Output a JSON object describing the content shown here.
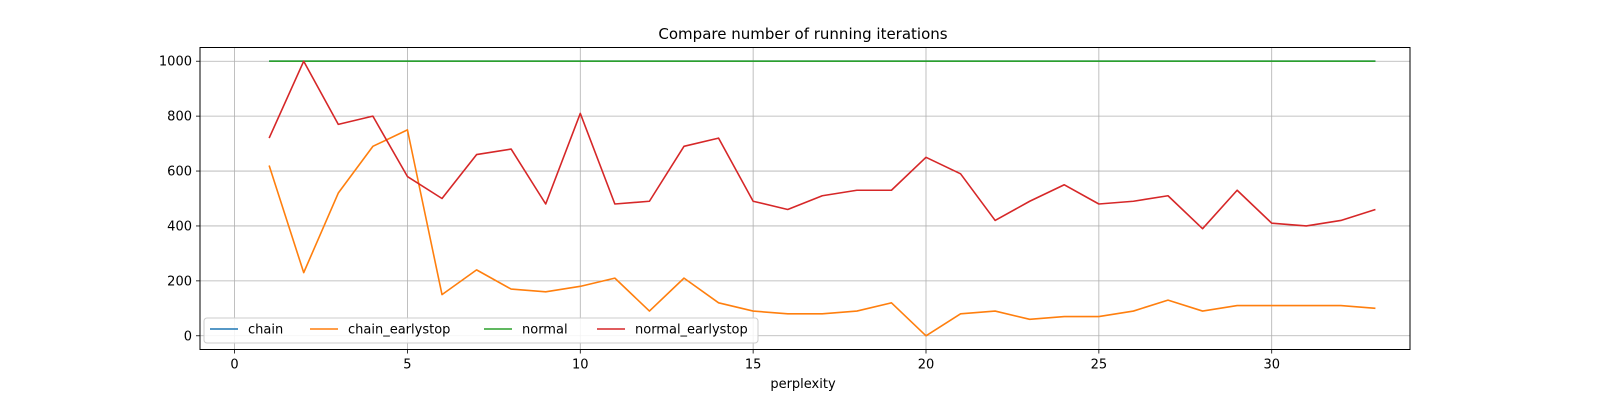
{
  "chart_data": {
    "type": "line",
    "title": "Compare number of running iterations",
    "xlabel": "perplexity",
    "ylabel": "",
    "xlim": [
      -1,
      34
    ],
    "ylim": [
      -50,
      1050
    ],
    "xticks": [
      0,
      5,
      10,
      15,
      20,
      25,
      30
    ],
    "yticks": [
      0,
      200,
      400,
      600,
      800,
      1000
    ],
    "grid": true,
    "legend_placement": "lower-left",
    "x": [
      1,
      2,
      3,
      4,
      5,
      6,
      7,
      8,
      9,
      10,
      11,
      12,
      13,
      14,
      15,
      16,
      17,
      18,
      19,
      20,
      21,
      22,
      23,
      24,
      25,
      26,
      27,
      28,
      29,
      30,
      31,
      32,
      33
    ],
    "series": [
      {
        "name": "chain",
        "color": "#1f77b4",
        "values": [
          1000,
          1000,
          1000,
          1000,
          1000,
          1000,
          1000,
          1000,
          1000,
          1000,
          1000,
          1000,
          1000,
          1000,
          1000,
          1000,
          1000,
          1000,
          1000,
          1000,
          1000,
          1000,
          1000,
          1000,
          1000,
          1000,
          1000,
          1000,
          1000,
          1000,
          1000,
          1000,
          1000
        ]
      },
      {
        "name": "chain_earlystop",
        "color": "#ff7f0e",
        "values": [
          620,
          230,
          520,
          690,
          750,
          150,
          240,
          170,
          160,
          180,
          210,
          90,
          210,
          120,
          90,
          80,
          80,
          90,
          120,
          0,
          80,
          90,
          60,
          70,
          70,
          90,
          130,
          90,
          110,
          110,
          110,
          110,
          100
        ]
      },
      {
        "name": "normal",
        "color": "#2ca02c",
        "values": [
          1000,
          1000,
          1000,
          1000,
          1000,
          1000,
          1000,
          1000,
          1000,
          1000,
          1000,
          1000,
          1000,
          1000,
          1000,
          1000,
          1000,
          1000,
          1000,
          1000,
          1000,
          1000,
          1000,
          1000,
          1000,
          1000,
          1000,
          1000,
          1000,
          1000,
          1000,
          1000,
          1000
        ]
      },
      {
        "name": "normal_earlystop",
        "color": "#d62728",
        "values": [
          720,
          1000,
          770,
          800,
          580,
          500,
          660,
          680,
          480,
          810,
          480,
          490,
          690,
          720,
          490,
          460,
          510,
          530,
          530,
          650,
          590,
          420,
          490,
          550,
          480,
          490,
          510,
          390,
          530,
          410,
          400,
          420,
          460
        ]
      }
    ]
  }
}
